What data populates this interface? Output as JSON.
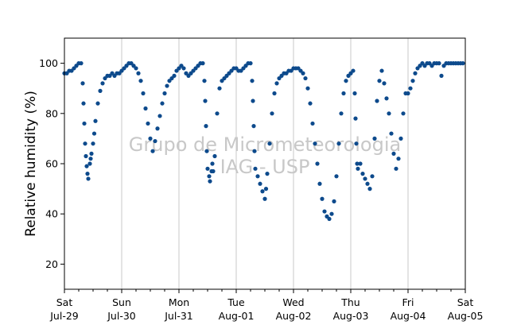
{
  "chart_data": {
    "type": "scatter",
    "title": "",
    "xlabel": "",
    "ylabel": "Relative humidity (%)",
    "ylim": [
      10,
      110
    ],
    "xlim": [
      "2017-07-29",
      "2017-08-05"
    ],
    "yticks": [
      20,
      40,
      60,
      80,
      100
    ],
    "xticks": [
      {
        "day": "Sat",
        "date": "Jul-29"
      },
      {
        "day": "Sun",
        "date": "Jul-30"
      },
      {
        "day": "Mon",
        "date": "Jul-31"
      },
      {
        "day": "Tue",
        "date": "Aug-01"
      },
      {
        "day": "Wed",
        "date": "Aug-02"
      },
      {
        "day": "Thu",
        "date": "Aug-03"
      },
      {
        "day": "Fri",
        "date": "Aug-04"
      },
      {
        "day": "Sat",
        "date": "Aug-05"
      }
    ],
    "grid": "x",
    "marker_color": "#0d4a8c",
    "watermark": {
      "line1": "Grupo de Micrometeorologia",
      "line2": "IAG - USP"
    },
    "series": [
      {
        "points": [
          [
            "2017-07-29 00:00",
            96
          ],
          [
            "2017-07-29 01:00",
            96
          ],
          [
            "2017-07-29 02:00",
            97
          ],
          [
            "2017-07-29 03:00",
            97
          ],
          [
            "2017-07-29 04:00",
            98
          ],
          [
            "2017-07-29 05:00",
            99
          ],
          [
            "2017-07-29 06:00",
            100
          ],
          [
            "2017-07-29 07:00",
            100
          ],
          [
            "2017-07-29 07:40",
            92
          ],
          [
            "2017-07-29 08:00",
            84
          ],
          [
            "2017-07-29 08:20",
            76
          ],
          [
            "2017-07-29 08:40",
            68
          ],
          [
            "2017-07-29 09:00",
            63
          ],
          [
            "2017-07-29 09:20",
            59
          ],
          [
            "2017-07-29 09:40",
            56
          ],
          [
            "2017-07-29 10:00",
            54
          ],
          [
            "2017-07-29 10:40",
            60
          ],
          [
            "2017-07-29 11:00",
            62
          ],
          [
            "2017-07-29 11:20",
            64
          ],
          [
            "2017-07-29 12:00",
            68
          ],
          [
            "2017-07-29 12:30",
            72
          ],
          [
            "2017-07-29 13:00",
            77
          ],
          [
            "2017-07-29 14:00",
            84
          ],
          [
            "2017-07-29 15:00",
            89
          ],
          [
            "2017-07-29 16:00",
            92
          ],
          [
            "2017-07-29 17:00",
            94
          ],
          [
            "2017-07-29 18:00",
            95
          ],
          [
            "2017-07-29 19:00",
            95
          ],
          [
            "2017-07-29 20:00",
            96
          ],
          [
            "2017-07-29 21:00",
            95
          ],
          [
            "2017-07-29 22:00",
            96
          ],
          [
            "2017-07-29 23:00",
            96
          ],
          [
            "2017-07-30 00:00",
            97
          ],
          [
            "2017-07-30 01:00",
            98
          ],
          [
            "2017-07-30 02:00",
            99
          ],
          [
            "2017-07-30 03:00",
            100
          ],
          [
            "2017-07-30 04:00",
            100
          ],
          [
            "2017-07-30 05:00",
            99
          ],
          [
            "2017-07-30 06:00",
            98
          ],
          [
            "2017-07-30 07:00",
            96
          ],
          [
            "2017-07-30 08:00",
            93
          ],
          [
            "2017-07-30 09:00",
            88
          ],
          [
            "2017-07-30 10:00",
            82
          ],
          [
            "2017-07-30 11:00",
            76
          ],
          [
            "2017-07-30 12:00",
            70
          ],
          [
            "2017-07-30 13:00",
            65
          ],
          [
            "2017-07-30 14:00",
            69
          ],
          [
            "2017-07-30 15:00",
            74
          ],
          [
            "2017-07-30 16:00",
            79
          ],
          [
            "2017-07-30 17:00",
            84
          ],
          [
            "2017-07-30 18:00",
            88
          ],
          [
            "2017-07-30 19:00",
            91
          ],
          [
            "2017-07-30 20:00",
            93
          ],
          [
            "2017-07-30 21:00",
            94
          ],
          [
            "2017-07-30 22:00",
            95
          ],
          [
            "2017-07-30 23:00",
            97
          ],
          [
            "2017-07-31 00:00",
            98
          ],
          [
            "2017-07-31 01:00",
            99
          ],
          [
            "2017-07-31 02:00",
            98
          ],
          [
            "2017-07-31 03:00",
            96
          ],
          [
            "2017-07-31 04:00",
            95
          ],
          [
            "2017-07-31 05:00",
            96
          ],
          [
            "2017-07-31 06:00",
            97
          ],
          [
            "2017-07-31 07:00",
            98
          ],
          [
            "2017-07-31 08:00",
            99
          ],
          [
            "2017-07-31 09:00",
            100
          ],
          [
            "2017-07-31 10:00",
            100
          ],
          [
            "2017-07-31 10:40",
            93
          ],
          [
            "2017-07-31 11:00",
            85
          ],
          [
            "2017-07-31 11:20",
            75
          ],
          [
            "2017-07-31 11:40",
            65
          ],
          [
            "2017-07-31 12:00",
            58
          ],
          [
            "2017-07-31 12:40",
            55
          ],
          [
            "2017-07-31 13:00",
            53
          ],
          [
            "2017-07-31 13:40",
            57
          ],
          [
            "2017-07-31 14:00",
            60
          ],
          [
            "2017-07-31 14:20",
            57
          ],
          [
            "2017-07-31 15:00",
            63
          ],
          [
            "2017-07-31 16:00",
            80
          ],
          [
            "2017-07-31 17:00",
            90
          ],
          [
            "2017-07-31 18:00",
            93
          ],
          [
            "2017-07-31 19:00",
            94
          ],
          [
            "2017-07-31 20:00",
            95
          ],
          [
            "2017-07-31 21:00",
            96
          ],
          [
            "2017-07-31 22:00",
            97
          ],
          [
            "2017-07-31 23:00",
            98
          ],
          [
            "2017-08-01 00:00",
            98
          ],
          [
            "2017-08-01 01:00",
            97
          ],
          [
            "2017-08-01 02:00",
            97
          ],
          [
            "2017-08-01 03:00",
            98
          ],
          [
            "2017-08-01 04:00",
            99
          ],
          [
            "2017-08-01 05:00",
            100
          ],
          [
            "2017-08-01 06:00",
            100
          ],
          [
            "2017-08-01 06:40",
            93
          ],
          [
            "2017-08-01 07:00",
            85
          ],
          [
            "2017-08-01 07:20",
            75
          ],
          [
            "2017-08-01 07:40",
            65
          ],
          [
            "2017-08-01 08:00",
            58
          ],
          [
            "2017-08-01 09:00",
            55
          ],
          [
            "2017-08-01 10:00",
            52
          ],
          [
            "2017-08-01 11:00",
            49
          ],
          [
            "2017-08-01 12:00",
            46
          ],
          [
            "2017-08-01 12:30",
            50
          ],
          [
            "2017-08-01 13:00",
            56
          ],
          [
            "2017-08-01 14:00",
            68
          ],
          [
            "2017-08-01 15:00",
            80
          ],
          [
            "2017-08-01 16:00",
            88
          ],
          [
            "2017-08-01 17:00",
            92
          ],
          [
            "2017-08-01 18:00",
            94
          ],
          [
            "2017-08-01 19:00",
            95
          ],
          [
            "2017-08-01 20:00",
            96
          ],
          [
            "2017-08-01 21:00",
            96
          ],
          [
            "2017-08-01 22:00",
            97
          ],
          [
            "2017-08-01 23:00",
            97
          ],
          [
            "2017-08-02 00:00",
            98
          ],
          [
            "2017-08-02 01:00",
            98
          ],
          [
            "2017-08-02 02:00",
            98
          ],
          [
            "2017-08-02 03:00",
            97
          ],
          [
            "2017-08-02 04:00",
            96
          ],
          [
            "2017-08-02 05:00",
            94
          ],
          [
            "2017-08-02 06:00",
            90
          ],
          [
            "2017-08-02 07:00",
            84
          ],
          [
            "2017-08-02 08:00",
            76
          ],
          [
            "2017-08-02 09:00",
            68
          ],
          [
            "2017-08-02 10:00",
            60
          ],
          [
            "2017-08-02 11:00",
            52
          ],
          [
            "2017-08-02 12:00",
            46
          ],
          [
            "2017-08-02 13:00",
            41
          ],
          [
            "2017-08-02 14:00",
            39
          ],
          [
            "2017-08-02 15:00",
            38
          ],
          [
            "2017-08-02 16:00",
            40
          ],
          [
            "2017-08-02 17:00",
            45
          ],
          [
            "2017-08-02 18:00",
            55
          ],
          [
            "2017-08-02 19:00",
            68
          ],
          [
            "2017-08-02 20:00",
            80
          ],
          [
            "2017-08-02 21:00",
            88
          ],
          [
            "2017-08-02 22:00",
            93
          ],
          [
            "2017-08-02 23:00",
            95
          ],
          [
            "2017-08-03 00:00",
            96
          ],
          [
            "2017-08-03 01:00",
            97
          ],
          [
            "2017-08-03 01:40",
            88
          ],
          [
            "2017-08-03 02:00",
            78
          ],
          [
            "2017-08-03 02:20",
            68
          ],
          [
            "2017-08-03 02:40",
            60
          ],
          [
            "2017-08-03 03:00",
            58
          ],
          [
            "2017-08-03 04:00",
            60
          ],
          [
            "2017-08-03 05:00",
            56
          ],
          [
            "2017-08-03 06:00",
            54
          ],
          [
            "2017-08-03 07:00",
            52
          ],
          [
            "2017-08-03 08:00",
            50
          ],
          [
            "2017-08-03 09:00",
            55
          ],
          [
            "2017-08-03 10:00",
            70
          ],
          [
            "2017-08-03 11:00",
            85
          ],
          [
            "2017-08-03 12:00",
            93
          ],
          [
            "2017-08-03 13:00",
            97
          ],
          [
            "2017-08-03 14:00",
            92
          ],
          [
            "2017-08-03 15:00",
            86
          ],
          [
            "2017-08-03 16:00",
            80
          ],
          [
            "2017-08-03 17:00",
            72
          ],
          [
            "2017-08-03 18:00",
            64
          ],
          [
            "2017-08-03 19:00",
            58
          ],
          [
            "2017-08-03 20:00",
            62
          ],
          [
            "2017-08-03 21:00",
            70
          ],
          [
            "2017-08-03 22:00",
            80
          ],
          [
            "2017-08-03 23:00",
            88
          ],
          [
            "2017-08-04 00:00",
            88
          ],
          [
            "2017-08-04 01:00",
            90
          ],
          [
            "2017-08-04 02:00",
            93
          ],
          [
            "2017-08-04 03:00",
            96
          ],
          [
            "2017-08-04 04:00",
            98
          ],
          [
            "2017-08-04 05:00",
            99
          ],
          [
            "2017-08-04 06:00",
            100
          ],
          [
            "2017-08-04 07:00",
            99
          ],
          [
            "2017-08-04 08:00",
            100
          ],
          [
            "2017-08-04 09:00",
            100
          ],
          [
            "2017-08-04 10:00",
            99
          ],
          [
            "2017-08-04 11:00",
            100
          ],
          [
            "2017-08-04 12:00",
            100
          ],
          [
            "2017-08-04 13:00",
            100
          ],
          [
            "2017-08-04 14:00",
            95
          ],
          [
            "2017-08-04 15:00",
            99
          ],
          [
            "2017-08-04 16:00",
            100
          ],
          [
            "2017-08-04 17:00",
            100
          ],
          [
            "2017-08-04 18:00",
            100
          ],
          [
            "2017-08-04 19:00",
            100
          ],
          [
            "2017-08-04 20:00",
            100
          ],
          [
            "2017-08-04 21:00",
            100
          ],
          [
            "2017-08-04 22:00",
            100
          ],
          [
            "2017-08-04 23:00",
            100
          ]
        ]
      }
    ]
  }
}
